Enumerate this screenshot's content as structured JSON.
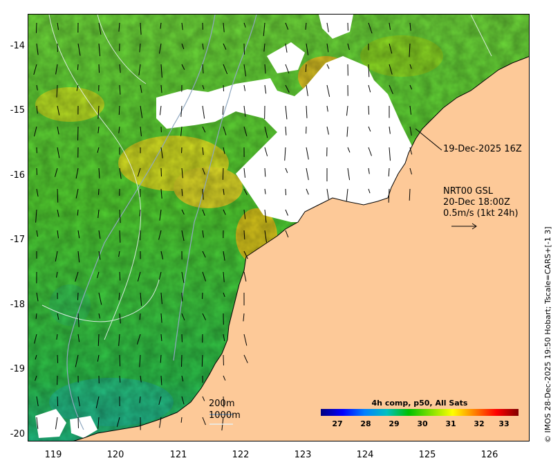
{
  "map": {
    "y_axis_labels": [
      "-14",
      "-15",
      "-16",
      "-17",
      "-18",
      "-19",
      "-20"
    ],
    "x_axis_labels": [
      "119",
      "120",
      "121",
      "122",
      "123",
      "124",
      "125",
      "126"
    ],
    "annotation_date": "19-Dec-2025 16Z",
    "current_info": {
      "line1": "NRT00 GSL",
      "line2": "20-Dec 18:00Z",
      "line3": "0.5m/s (1kt 24h)"
    },
    "isobath_200": "200m",
    "isobath_1000": "1000m",
    "colorbar": {
      "title": "4h comp, p50, All Sats",
      "ticks": [
        "27",
        "28",
        "29",
        "30",
        "31",
        "32",
        "33"
      ]
    },
    "credit": "© IMOS 28-Dec-2025 19:50 Hobart; Tscale=CARS+[-1 3]",
    "colors": {
      "land": "#fdc998",
      "sea_green": "#4ccd2c",
      "cloud": "#ffffff",
      "warm": "#f0d020"
    }
  }
}
